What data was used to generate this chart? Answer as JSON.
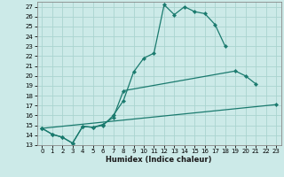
{
  "xlabel": "Humidex (Indice chaleur)",
  "background_color": "#cceae8",
  "grid_color": "#aad4d0",
  "line_color": "#1a7a6e",
  "xlim": [
    -0.5,
    23.5
  ],
  "ylim": [
    13,
    27.5
  ],
  "xticks": [
    0,
    1,
    2,
    3,
    4,
    5,
    6,
    7,
    8,
    9,
    10,
    11,
    12,
    13,
    14,
    15,
    16,
    17,
    18,
    19,
    20,
    21,
    22,
    23
  ],
  "yticks": [
    13,
    14,
    15,
    16,
    17,
    18,
    19,
    20,
    21,
    22,
    23,
    24,
    25,
    26,
    27
  ],
  "s0x": [
    0,
    1,
    2,
    3,
    4,
    5,
    6,
    7,
    8,
    9,
    10,
    11,
    12,
    13,
    14,
    15,
    16,
    17,
    18
  ],
  "s0y": [
    14.7,
    14.1,
    13.8,
    13.2,
    14.9,
    14.8,
    15.0,
    16.0,
    17.5,
    20.4,
    21.8,
    22.3,
    27.2,
    26.2,
    27.0,
    26.5,
    26.3,
    25.2,
    23.0
  ],
  "s1x": [
    0,
    1,
    2,
    3,
    4,
    5,
    6,
    7,
    8,
    19,
    20,
    21
  ],
  "s1y": [
    14.7,
    14.1,
    13.8,
    13.2,
    14.9,
    14.8,
    15.1,
    15.8,
    18.5,
    20.5,
    20.0,
    19.2
  ],
  "s2x": [
    0,
    23
  ],
  "s2y": [
    14.7,
    17.1
  ]
}
